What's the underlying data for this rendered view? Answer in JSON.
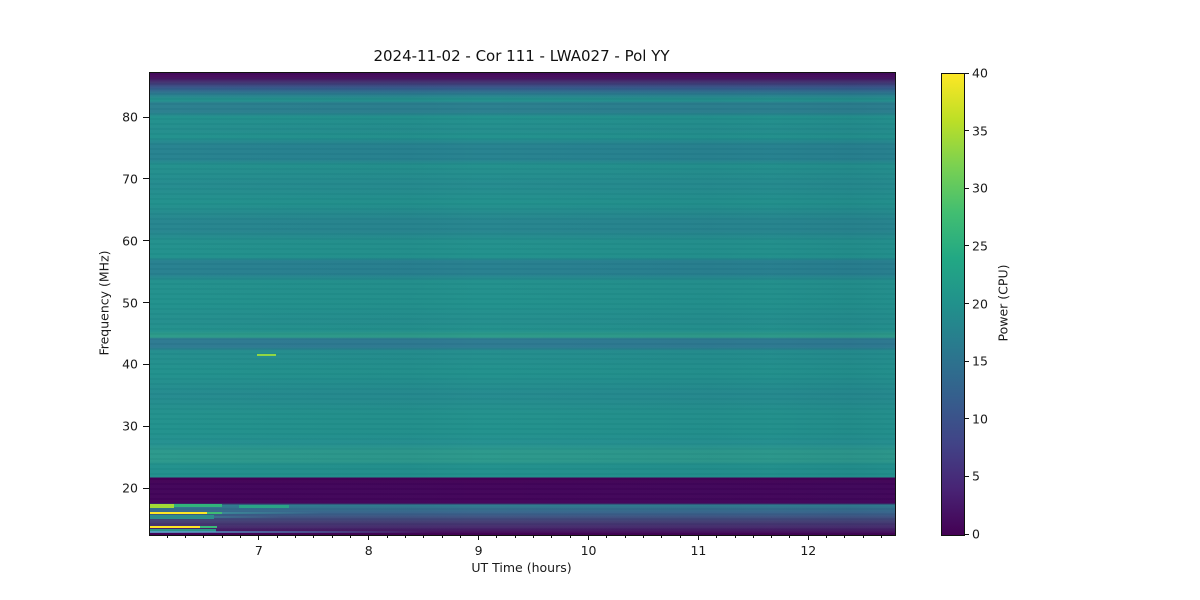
{
  "figure": {
    "title": "2024-11-02 - Cor 111 - LWA027 - Pol YY",
    "xlabel": "UT Time (hours)",
    "ylabel": "Frequency (MHz)",
    "colorbar_label": "Power (CPU)"
  },
  "chart_data": {
    "type": "heatmap",
    "title": "2024-11-02 - Cor 111 - LWA027 - Pol YY",
    "xlabel": "UT Time (hours)",
    "ylabel": "Frequency (MHz)",
    "x_range": [
      6.0,
      12.78
    ],
    "x_ticks": [
      7,
      8,
      9,
      10,
      11,
      12
    ],
    "x_minor_tick_interval_hours": 0.1667,
    "y_range": [
      12.56,
      87.3
    ],
    "y_ticks": [
      20,
      30,
      40,
      50,
      60,
      70,
      80
    ],
    "grid": false,
    "colorbar": {
      "label": "Power (CPU)",
      "ticks": [
        0,
        5,
        10,
        15,
        20,
        25,
        30,
        35,
        40
      ],
      "vmin": 0,
      "vmax": 40,
      "colormap": "viridis",
      "position": "right"
    },
    "colors": {
      "background_continuum": "#21918c",
      "zero_power": "#440154",
      "rfi_line": "#fde725",
      "burst": "#8fd744"
    },
    "features": [
      {
        "name": "continuum",
        "description": "smooth teal continuum across full time range",
        "freq_range_mhz": [
          23,
          85
        ],
        "power_cpu": 20
      },
      {
        "name": "top-rolloff",
        "description": "bandpass rolloff, power drops to 0 at top edge",
        "freq_range_mhz": [
          85,
          87.3
        ],
        "power_cpu": 0
      },
      {
        "name": "notched-band",
        "description": "dark zero-power horizontal band across all times",
        "freq_range_mhz": [
          17.6,
          21.8
        ],
        "power_cpu": 0
      },
      {
        "name": "hf-band",
        "description": "teal band below notch fading to purple toward bottom edge",
        "freq_range_mhz": [
          12.6,
          17.6
        ],
        "power_cpu": "15 at top fading to 0"
      },
      {
        "name": "rfi-line-16mhz",
        "description": "saturated yellow narrowband RFI line at start of observation",
        "freq_mhz": 16.2,
        "time_ut_hours": [
          6.0,
          6.51
        ],
        "power_cpu": 40
      },
      {
        "name": "rfi-line-14mhz",
        "description": "saturated yellow narrowband RFI line at start of observation",
        "freq_mhz": 13.9,
        "time_ut_hours": [
          6.0,
          6.45
        ],
        "power_cpu": 40
      },
      {
        "name": "burst-42mhz",
        "description": "short bright green-yellow dash",
        "freq_mhz": 41.8,
        "time_ut_hours": [
          6.97,
          7.15
        ],
        "power_cpu": 33
      },
      {
        "name": "bottom-faint-line",
        "description": "faint blue horizontal trace near bottom edge fading rightward",
        "freq_mhz": 13.1,
        "time_ut_hours": [
          6.0,
          8.55
        ],
        "power_cpu": 12
      }
    ]
  }
}
